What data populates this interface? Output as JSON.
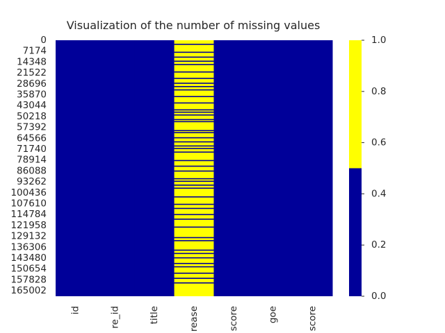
{
  "chart_data": {
    "type": "heatmap",
    "title": "Visualization of the number of missing values",
    "xlabel": "",
    "ylabel": "",
    "columns": [
      "id",
      "re_id",
      "title",
      "rease",
      "score",
      "goe",
      "score"
    ],
    "row_count": 168589,
    "row_ticks": [
      "0",
      "7174",
      "14348",
      "21522",
      "28696",
      "35870",
      "43044",
      "50218",
      "57392",
      "64566",
      "71740",
      "78914",
      "86088",
      "93262",
      "100436",
      "107610",
      "114784",
      "121958",
      "129132",
      "136306",
      "143480",
      "150654",
      "157828",
      "165002"
    ],
    "column_missing": [
      false,
      false,
      false,
      true,
      false,
      false,
      false
    ],
    "present_row_fractions_in_missing_column": [
      0.016,
      0.047,
      0.066,
      0.082,
      0.095,
      0.124,
      0.149,
      0.168,
      0.181,
      0.194,
      0.22,
      0.245,
      0.272,
      0.281,
      0.292,
      0.31,
      0.318,
      0.353,
      0.361,
      0.381,
      0.397,
      0.413,
      0.423,
      0.437,
      0.47,
      0.492,
      0.511,
      0.541,
      0.551,
      0.566,
      0.578,
      0.612,
      0.641,
      0.657,
      0.681,
      0.699,
      0.73,
      0.771,
      0.783,
      0.82,
      0.833,
      0.85,
      0.872,
      0.885,
      0.91,
      0.93,
      0.948
    ],
    "colormap": {
      "0": "#000099",
      "1": "#ffff00"
    },
    "colorbar": {
      "range": [
        0.0,
        1.0
      ],
      "ticks": [
        "0.0",
        "0.2",
        "0.4",
        "0.6",
        "0.8",
        "1.0"
      ]
    },
    "grid": false
  }
}
